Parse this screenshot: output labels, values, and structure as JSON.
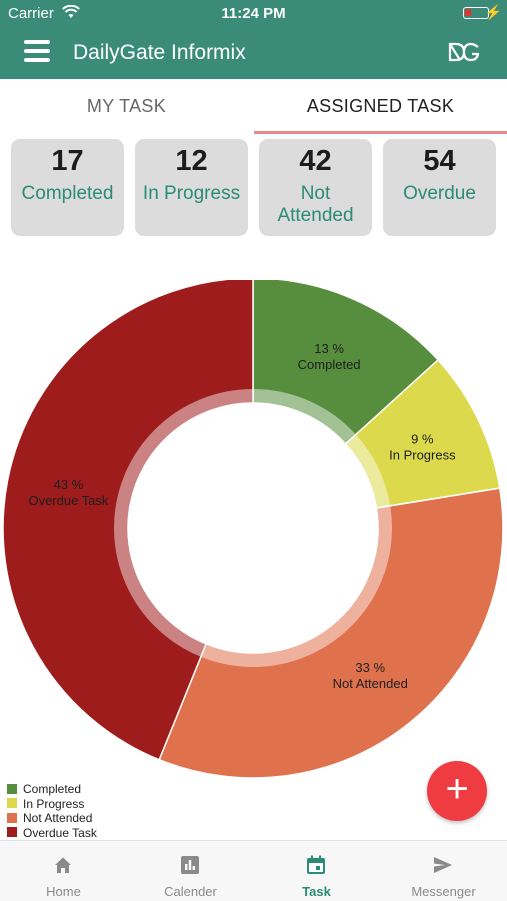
{
  "status_bar": {
    "carrier": "Carrier",
    "time": "11:24 PM"
  },
  "app_bar": {
    "title": "DailyGate Informix",
    "menu_icon": "hamburger-menu-icon",
    "logo_icon": "dailygate-logo-icon"
  },
  "tabs": [
    {
      "label": "MY TASK",
      "active": false
    },
    {
      "label": "ASSIGNED TASK",
      "active": true
    }
  ],
  "summary_cards": [
    {
      "count": "17",
      "label": "Completed"
    },
    {
      "count": "12",
      "label": "In Progress"
    },
    {
      "count": "42",
      "label": "Not Attended"
    },
    {
      "count": "54",
      "label": "Overdue"
    }
  ],
  "chart_data": {
    "type": "pie",
    "categories": [
      "Completed",
      "In Progress",
      "Not Attended",
      "Overdue Task"
    ],
    "values": [
      13,
      9,
      33,
      43
    ],
    "slice_labels": [
      "13 %",
      "9 %",
      "33 %",
      "43 %"
    ],
    "colors": [
      "#578e3e",
      "#dcd94c",
      "#e0714d",
      "#9e1c1c"
    ],
    "legend": [
      "Completed",
      "In Progress",
      "Not Attended",
      "Overdue Task"
    ],
    "legend_position": "bottom-left",
    "donut": true
  },
  "fab": {
    "symbol": "+",
    "icon": "plus-icon"
  },
  "bottom_nav": [
    {
      "label": "Home",
      "icon": "home-icon",
      "active": false
    },
    {
      "label": "Calender",
      "icon": "bar-chart-icon",
      "active": false
    },
    {
      "label": "Task",
      "icon": "calendar-icon",
      "active": true
    },
    {
      "label": "Messenger",
      "icon": "send-icon",
      "active": false
    }
  ]
}
